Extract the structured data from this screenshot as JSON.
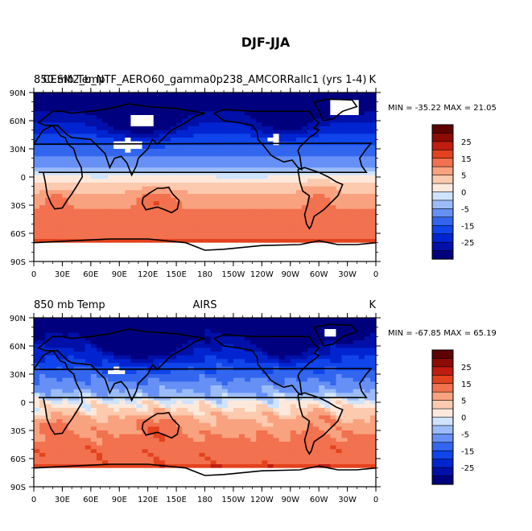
{
  "chart_data": {
    "type": "heatmap",
    "title": "DJF-JJA",
    "colors": {
      "levels": [
        -30,
        -25,
        -20,
        -15,
        -10,
        -5,
        -2,
        0,
        2,
        5,
        10,
        15,
        20,
        25,
        30
      ],
      "fills": [
        "#00007f",
        "#0010a8",
        "#0025d0",
        "#0f45ea",
        "#3366ee",
        "#6690f5",
        "#9bbcf8",
        "#cfe3fc",
        "#fde9dc",
        "#fccaae",
        "#f9a27f",
        "#f2714f",
        "#e2421d",
        "#c01c10",
        "#8c0b05",
        "#5e0202"
      ],
      "missing": "#ffffff"
    },
    "panels": [
      {
        "left_title": "850 mb Temp",
        "center_title": "CESM2_b_NTF_AERO60_gamma0p238_AMCORRallc1 (yrs 1-4)",
        "right_title": "K",
        "min": -35.22,
        "max": 21.05,
        "minmax_text": "MIN = -35.22  MAX =  21.05"
      },
      {
        "left_title": "850 mb Temp",
        "center_title": "AIRS",
        "right_title": "K",
        "min": -67.85,
        "max": 65.19,
        "minmax_text": "MIN = -67.85  MAX =  65.19"
      }
    ],
    "lat_ticks": [
      "90N",
      "60N",
      "30N",
      "0",
      "30S",
      "60S",
      "90S"
    ],
    "lon_ticks": [
      "0",
      "30E",
      "60E",
      "90E",
      "120E",
      "150E",
      "180",
      "150W",
      "120W",
      "90W",
      "60W",
      "30W",
      "0"
    ],
    "colorbar_labels": [
      "25",
      "15",
      "5",
      "0",
      "-5",
      "-15",
      "-25"
    ]
  }
}
